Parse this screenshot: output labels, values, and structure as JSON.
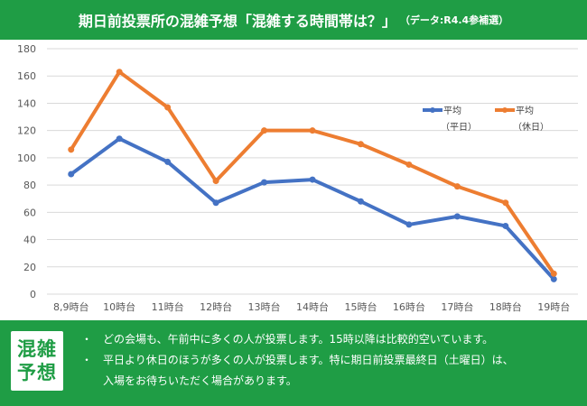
{
  "header": {
    "title": "期日前投票所の混雑予想「混雑する時間帯は？」",
    "subtitle": "（データ:R4.4参補選）"
  },
  "chart_data": {
    "type": "line",
    "categories": [
      "8,9時台",
      "10時台",
      "11時台",
      "12時台",
      "13時台",
      "14時台",
      "15時台",
      "16時台",
      "17時台",
      "18時台",
      "19時台"
    ],
    "series": [
      {
        "name": "平均（平日）",
        "color": "#4472c4",
        "values": [
          88,
          114,
          97,
          67,
          82,
          84,
          68,
          51,
          57,
          50,
          11
        ]
      },
      {
        "name": "平均（休日）",
        "color": "#ed7d31",
        "values": [
          106,
          163,
          137,
          83,
          120,
          120,
          110,
          95,
          79,
          67,
          15
        ]
      }
    ],
    "ylim": [
      0,
      180
    ],
    "yticks": [
      0,
      20,
      40,
      60,
      80,
      100,
      120,
      140,
      160,
      180
    ],
    "grid": true,
    "legend": "top-right"
  },
  "legend": [
    {
      "line1": "平均",
      "line2": "（平日）"
    },
    {
      "line1": "平均",
      "line2": "（休日）"
    }
  ],
  "forecast": {
    "badge_top": "混雑",
    "badge_bottom": "予想",
    "bullet": "・",
    "note1": "どの会場も、午前中に多くの人が投票します。15時以降は比較的空いています。",
    "note2_line1": "平日より休日のほうが多くの人が投票します。特に期日前投票最終日（土曜日）は、",
    "note2_line2": "入場をお待ちいただく場合があります。"
  }
}
